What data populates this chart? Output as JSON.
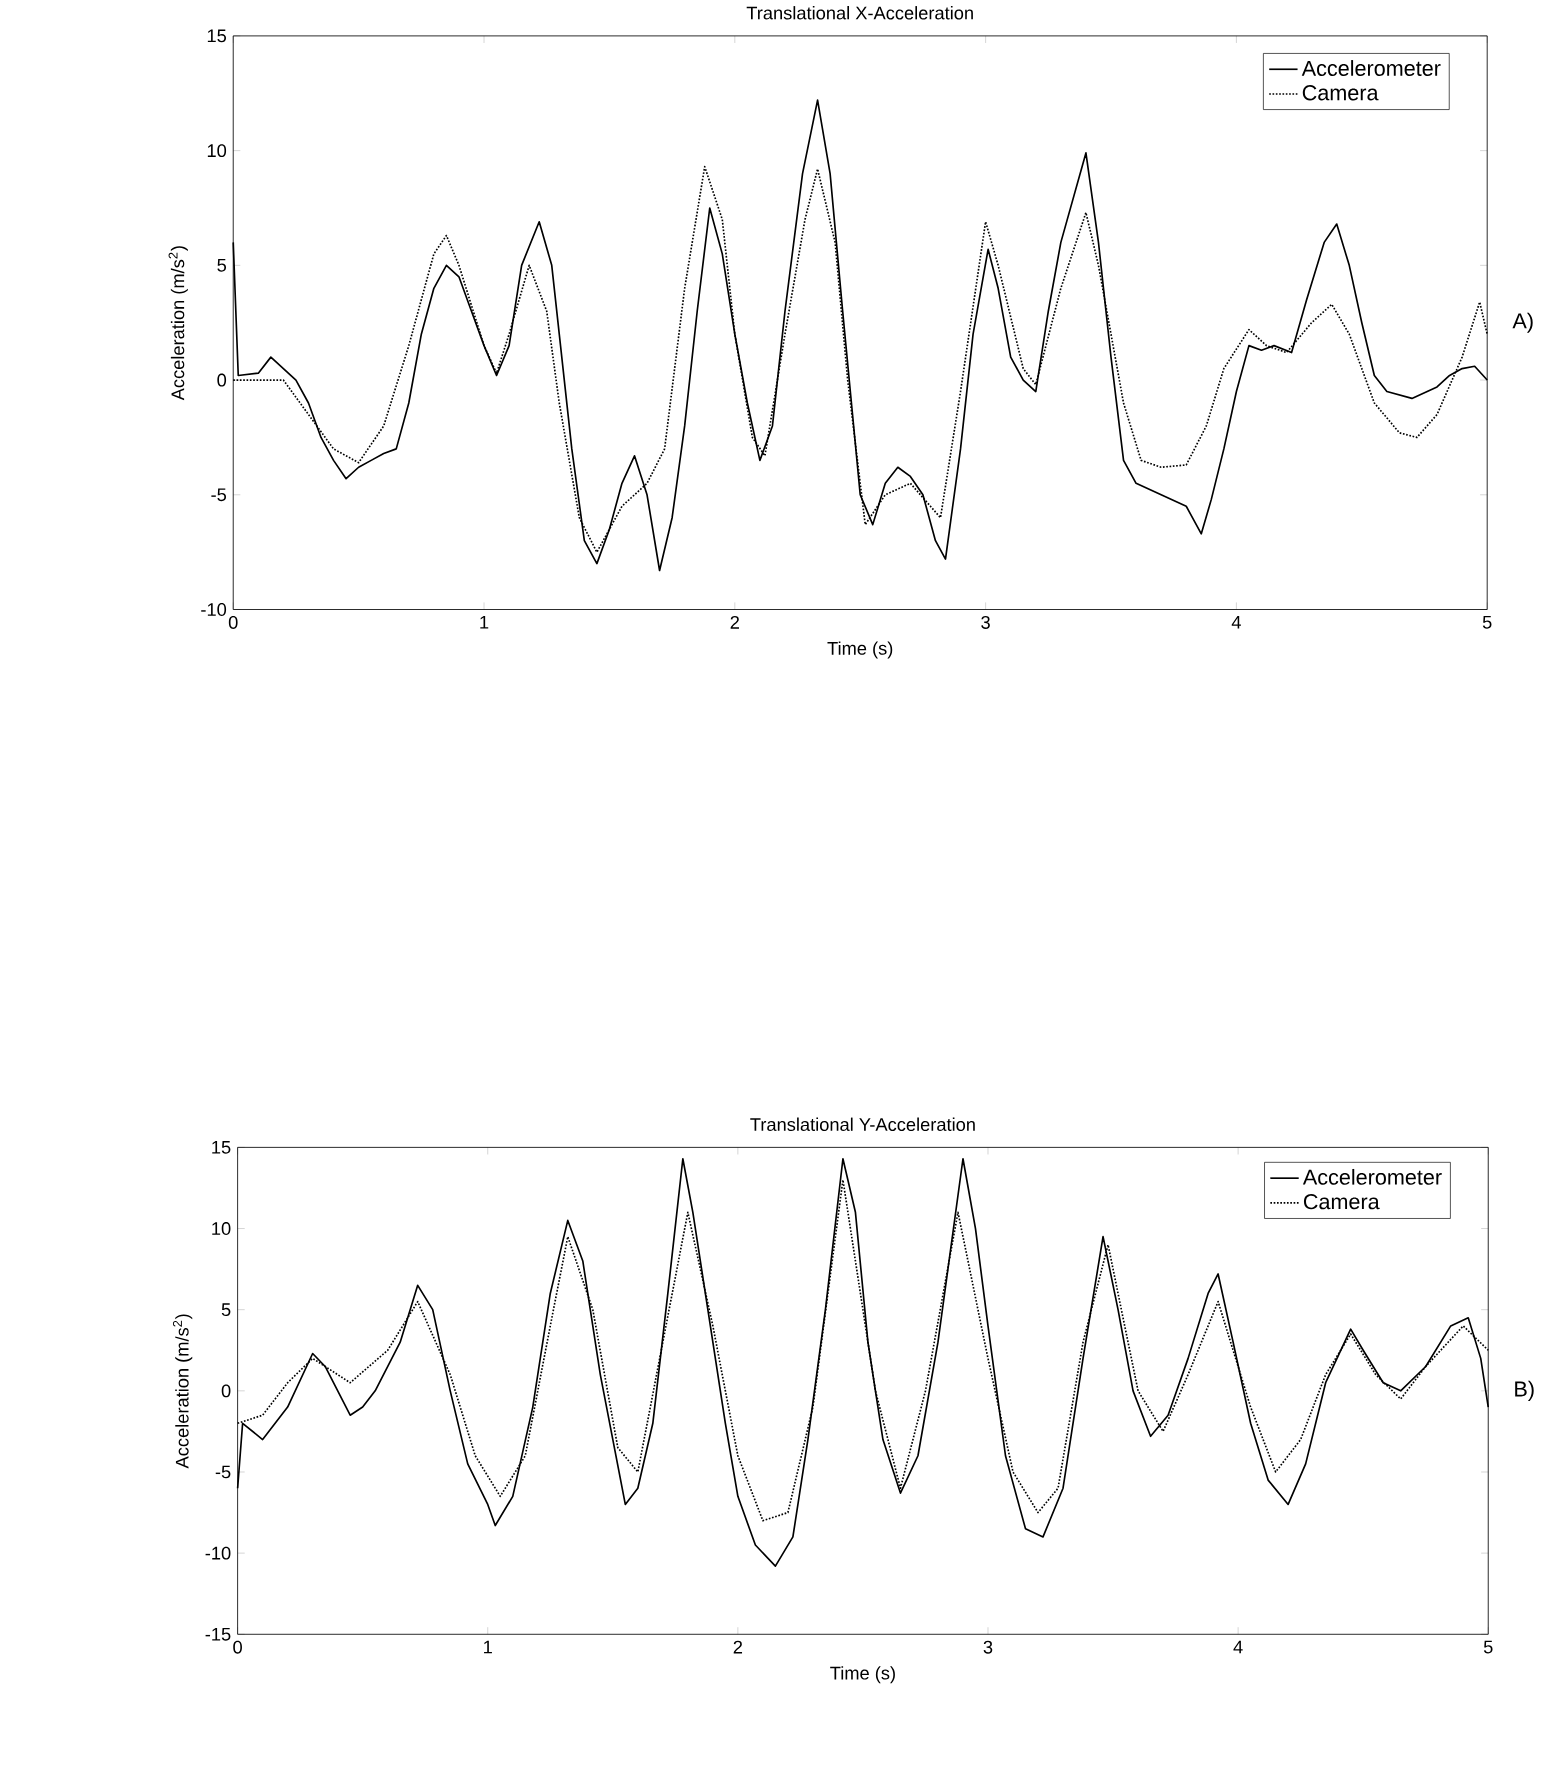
{
  "chart_data": [
    {
      "type": "line",
      "title": "Translational X-Acceleration",
      "xlabel": "Time (s)",
      "ylabel": "Acceleration (m/s$^{2}$)",
      "xlim": [
        0,
        5
      ],
      "ylim": [
        -10,
        15
      ],
      "xticks": [
        0,
        1,
        2,
        3,
        4,
        5
      ],
      "yticks": [
        -10,
        -5,
        0,
        5,
        10,
        15
      ],
      "legend": "top right",
      "annotations": [
        "A)"
      ],
      "series": [
        {
          "name": "Accelerometer",
          "color": "#000000",
          "line_style": "solid",
          "x": [
            0,
            0.02,
            0.1,
            0.15,
            0.2,
            0.25,
            0.3,
            0.35,
            0.4,
            0.45,
            0.5,
            0.55,
            0.6,
            0.65,
            0.7,
            0.75,
            0.8,
            0.85,
            0.9,
            0.95,
            1.0,
            1.05,
            1.1,
            1.15,
            1.22,
            1.27,
            1.3,
            1.35,
            1.4,
            1.45,
            1.5,
            1.55,
            1.6,
            1.65,
            1.7,
            1.75,
            1.8,
            1.85,
            1.9,
            1.95,
            2.0,
            2.05,
            2.1,
            2.15,
            2.2,
            2.27,
            2.33,
            2.38,
            2.43,
            2.5,
            2.55,
            2.6,
            2.65,
            2.7,
            2.75,
            2.8,
            2.84,
            2.9,
            2.95,
            3.01,
            3.05,
            3.1,
            3.15,
            3.2,
            3.25,
            3.3,
            3.4,
            3.45,
            3.5,
            3.55,
            3.6,
            3.7,
            3.8,
            3.86,
            3.9,
            3.95,
            4.0,
            4.05,
            4.1,
            4.15,
            4.22,
            4.28,
            4.35,
            4.4,
            4.45,
            4.5,
            4.55,
            4.6,
            4.7,
            4.8,
            4.85,
            4.9,
            4.95,
            5.0
          ],
          "values": [
            6,
            0.2,
            0.3,
            1.0,
            0.5,
            0,
            -1,
            -2.5,
            -3.5,
            -4.3,
            -3.8,
            -3.5,
            -3.2,
            -3.0,
            -1,
            2,
            4,
            5,
            4.5,
            3,
            1.5,
            0.2,
            1.5,
            5,
            6.9,
            5,
            2,
            -3,
            -7,
            -8,
            -6.5,
            -4.5,
            -3.3,
            -5,
            -8.3,
            -6,
            -2,
            3,
            7.5,
            5.5,
            2,
            -1,
            -3.5,
            -2,
            3,
            9,
            12.2,
            9,
            3,
            -5,
            -6.3,
            -4.5,
            -3.8,
            -4.2,
            -5,
            -7,
            -7.8,
            -3,
            2,
            5.7,
            4,
            1,
            0,
            -0.5,
            3,
            6,
            9.9,
            6,
            1,
            -3.5,
            -4.5,
            -5,
            -5.5,
            -6.7,
            -5.2,
            -3,
            -0.5,
            1.5,
            1.3,
            1.5,
            1.2,
            3.5,
            6,
            6.8,
            5,
            2.5,
            0.2,
            -0.5,
            -0.8,
            -0.3,
            0.2,
            0.5,
            0.6,
            0
          ]
        },
        {
          "name": "Camera",
          "color": "#000000",
          "line_style": "dotted",
          "x": [
            0,
            0.2,
            0.3,
            0.4,
            0.5,
            0.6,
            0.7,
            0.8,
            0.85,
            0.9,
            1.0,
            1.05,
            1.1,
            1.18,
            1.25,
            1.3,
            1.38,
            1.45,
            1.55,
            1.65,
            1.72,
            1.8,
            1.88,
            1.95,
            2.0,
            2.07,
            2.12,
            2.2,
            2.28,
            2.33,
            2.4,
            2.45,
            2.52,
            2.6,
            2.7,
            2.78,
            2.82,
            2.9,
            3.0,
            3.05,
            3.15,
            3.2,
            3.3,
            3.4,
            3.45,
            3.55,
            3.62,
            3.7,
            3.8,
            3.88,
            3.95,
            4.05,
            4.12,
            4.2,
            4.3,
            4.38,
            4.45,
            4.55,
            4.65,
            4.72,
            4.8,
            4.9,
            4.97,
            5.0
          ],
          "values": [
            0,
            0,
            -1.5,
            -3,
            -3.6,
            -2,
            1.5,
            5.5,
            6.3,
            5,
            1.5,
            0.3,
            2,
            5,
            3,
            -1,
            -6,
            -7.5,
            -5.5,
            -4.5,
            -3,
            4,
            9.3,
            7,
            2,
            -2.5,
            -3.3,
            2,
            7,
            9.2,
            6,
            0,
            -6.3,
            -5,
            -4.5,
            -5.5,
            -6,
            -0.5,
            6.9,
            5,
            0.5,
            -0.2,
            4,
            7.3,
            5,
            -1,
            -3.5,
            -3.8,
            -3.7,
            -2,
            0.5,
            2.2,
            1.5,
            1.2,
            2.5,
            3.3,
            2,
            -1,
            -2.3,
            -2.5,
            -1.5,
            1,
            3.4,
            2
          ]
        }
      ]
    },
    {
      "type": "line",
      "title": "Translational Y-Acceleration",
      "xlabel": "Time (s)",
      "ylabel": "Acceleration (m/s$^{2}$)",
      "xlim": [
        0,
        5
      ],
      "ylim": [
        -15,
        15
      ],
      "xticks": [
        0,
        1,
        2,
        3,
        4,
        5
      ],
      "yticks": [
        -15,
        -10,
        -5,
        0,
        5,
        10,
        15
      ],
      "legend": "top right",
      "annotations": [
        "B)"
      ],
      "series": [
        {
          "name": "Accelerometer",
          "color": "#000000",
          "line_style": "solid",
          "x": [
            0,
            0.02,
            0.1,
            0.2,
            0.3,
            0.35,
            0.45,
            0.5,
            0.55,
            0.65,
            0.72,
            0.78,
            0.85,
            0.92,
            1.0,
            1.03,
            1.1,
            1.18,
            1.25,
            1.32,
            1.38,
            1.45,
            1.5,
            1.55,
            1.6,
            1.66,
            1.72,
            1.78,
            1.82,
            1.88,
            1.95,
            2.0,
            2.07,
            2.15,
            2.22,
            2.28,
            2.35,
            2.42,
            2.47,
            2.52,
            2.58,
            2.65,
            2.72,
            2.8,
            2.9,
            2.95,
            3.0,
            3.07,
            3.15,
            3.22,
            3.3,
            3.38,
            3.46,
            3.52,
            3.58,
            3.65,
            3.72,
            3.8,
            3.88,
            3.92,
            3.98,
            4.05,
            4.12,
            4.2,
            4.27,
            4.35,
            4.45,
            4.5,
            4.58,
            4.65,
            4.75,
            4.85,
            4.92,
            4.97,
            5.0
          ],
          "values": [
            -6,
            -2,
            -3,
            -1,
            2.3,
            1.5,
            -1.5,
            -1,
            0,
            3,
            6.5,
            5,
            0,
            -4.5,
            -7,
            -8.3,
            -6.5,
            -1,
            6,
            10.5,
            8,
            1,
            -3,
            -7,
            -6,
            -2,
            6,
            14.3,
            11,
            5,
            -2,
            -6.5,
            -9.5,
            -10.8,
            -9,
            -3,
            5,
            14.3,
            11,
            3,
            -3,
            -6.3,
            -4,
            3,
            14.3,
            10,
            4,
            -4,
            -8.5,
            -9,
            -6,
            2,
            9.5,
            5,
            0,
            -2.8,
            -1.5,
            2,
            6,
            7.2,
            3,
            -2,
            -5.5,
            -7,
            -4.5,
            0.5,
            3.8,
            2.5,
            0.5,
            0,
            1.5,
            4,
            4.5,
            2,
            -1
          ]
        },
        {
          "name": "Camera",
          "color": "#000000",
          "line_style": "dotted",
          "x": [
            0,
            0.1,
            0.2,
            0.3,
            0.45,
            0.6,
            0.72,
            0.85,
            0.95,
            1.05,
            1.15,
            1.25,
            1.32,
            1.42,
            1.52,
            1.6,
            1.7,
            1.8,
            1.9,
            2.0,
            2.1,
            2.2,
            2.3,
            2.42,
            2.55,
            2.65,
            2.75,
            2.88,
            3.0,
            3.1,
            3.2,
            3.28,
            3.38,
            3.48,
            3.6,
            3.7,
            3.8,
            3.92,
            4.05,
            4.15,
            4.25,
            4.35,
            4.45,
            4.55,
            4.65,
            4.75,
            4.9,
            5.0
          ],
          "values": [
            -2,
            -1.5,
            0.5,
            2,
            0.5,
            2.5,
            5.5,
            1,
            -4,
            -6.5,
            -4,
            4,
            9.5,
            5,
            -3.5,
            -5,
            3,
            11,
            4,
            -4,
            -8,
            -7.5,
            -1,
            13,
            0,
            -6,
            0,
            11,
            2,
            -5,
            -7.5,
            -6,
            3,
            9,
            0,
            -2.5,
            1,
            5.5,
            -1,
            -5,
            -3,
            1,
            3.5,
            1,
            -0.5,
            1.5,
            4,
            2.5
          ]
        }
      ]
    }
  ]
}
